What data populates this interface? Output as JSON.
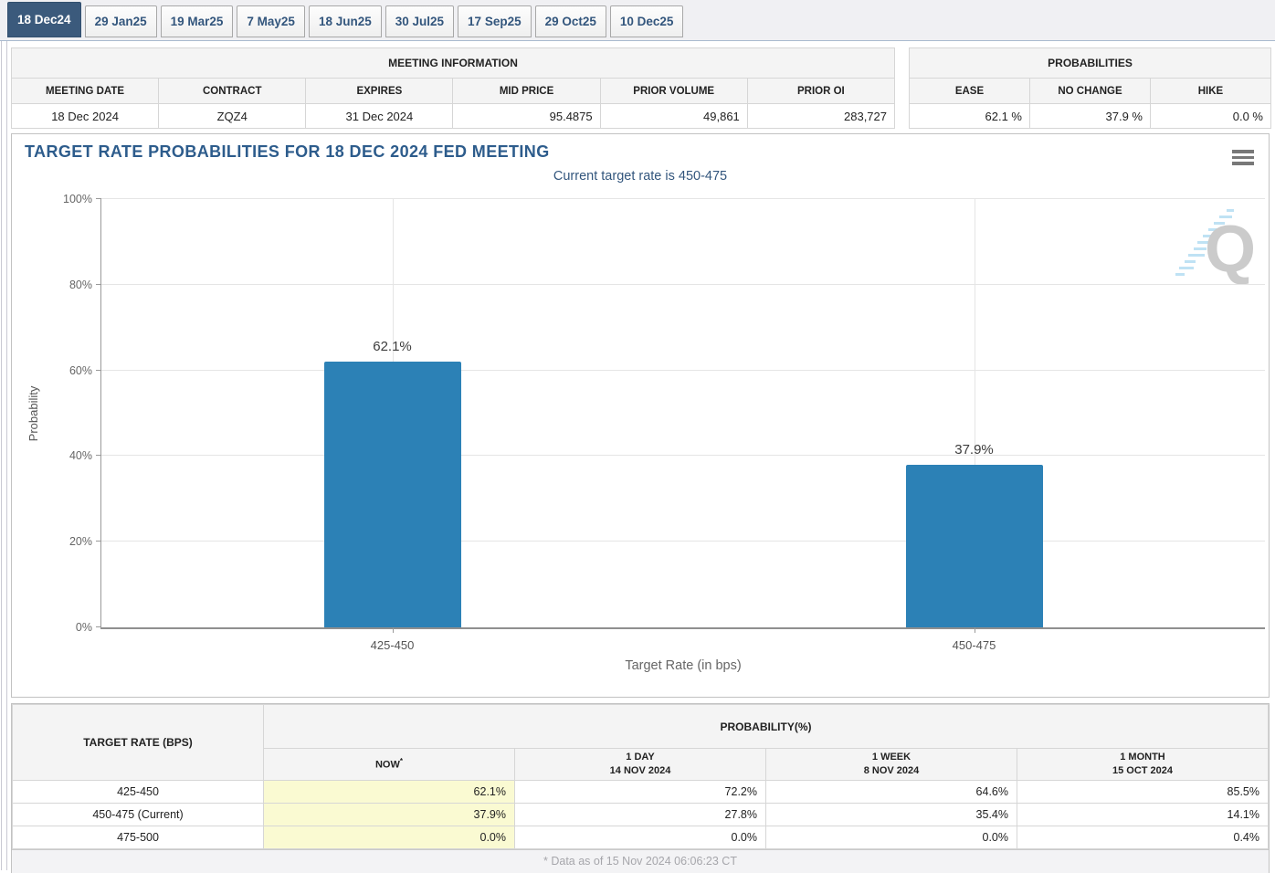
{
  "page": {
    "tabs": [
      {
        "label": "18 Dec24",
        "selected": true
      },
      {
        "label": "29 Jan25",
        "selected": false
      },
      {
        "label": "19 Mar25",
        "selected": false
      },
      {
        "label": "7 May25",
        "selected": false
      },
      {
        "label": "18 Jun25",
        "selected": false
      },
      {
        "label": "30 Jul25",
        "selected": false
      },
      {
        "label": "17 Sep25",
        "selected": false
      },
      {
        "label": "29 Oct25",
        "selected": false
      },
      {
        "label": "10 Dec25",
        "selected": false
      }
    ]
  },
  "meeting_info": {
    "title": "MEETING INFORMATION",
    "columns": [
      "MEETING DATE",
      "CONTRACT",
      "EXPIRES",
      "MID PRICE",
      "PRIOR VOLUME",
      "PRIOR OI"
    ],
    "values": [
      "18 Dec 2024",
      "ZQZ4",
      "31 Dec 2024",
      "95.4875",
      "49,861",
      "283,727"
    ]
  },
  "probabilities_summary": {
    "title": "PROBABILITIES",
    "columns": [
      "EASE",
      "NO CHANGE",
      "HIKE"
    ],
    "values": [
      "62.1 %",
      "37.9 %",
      "0.0 %"
    ]
  },
  "chart_data": {
    "type": "bar",
    "title": "TARGET RATE PROBABILITIES FOR 18 DEC 2024 FED MEETING",
    "subtitle": "Current target rate is 450-475",
    "categories": [
      "425-450",
      "450-475"
    ],
    "values": [
      62.1,
      37.9
    ],
    "bar_labels": [
      "62.1%",
      "37.9%"
    ],
    "xlabel": "Target Rate (in bps)",
    "ylabel": "Probability",
    "ylim": [
      0,
      100
    ],
    "ytick_step": 20,
    "yticks": [
      "0%",
      "20%",
      "40%",
      "60%",
      "80%",
      "100%"
    ],
    "grid": true,
    "legend": false,
    "bar_color": "#2C81B6",
    "watermark_letter": "Q"
  },
  "history_table": {
    "row_header": "TARGET RATE (BPS)",
    "group_header": "PROBABILITY(%)",
    "col_headers": [
      {
        "line1": "NOW",
        "sup": "*",
        "line2": ""
      },
      {
        "line1": "1 DAY",
        "line2": "14 NOV 2024"
      },
      {
        "line1": "1 WEEK",
        "line2": "8 NOV 2024"
      },
      {
        "line1": "1 MONTH",
        "line2": "15 OCT 2024"
      }
    ],
    "rows": [
      {
        "rate": "425-450",
        "values": [
          "62.1%",
          "72.2%",
          "64.6%",
          "85.5%"
        ]
      },
      {
        "rate": "450-475 (Current)",
        "values": [
          "37.9%",
          "27.8%",
          "35.4%",
          "14.1%"
        ]
      },
      {
        "rate": "475-500",
        "values": [
          "0.0%",
          "0.0%",
          "0.0%",
          "0.4%"
        ]
      }
    ],
    "footnote": "* Data as of 15 Nov 2024 06:06:23 CT"
  },
  "colors": {
    "bar": "#2C81B6",
    "tab_selected_bg": "#3B5A7C",
    "chart_title_text": "#2D5C8C",
    "now_column_highlight": "#FAFAD2"
  }
}
